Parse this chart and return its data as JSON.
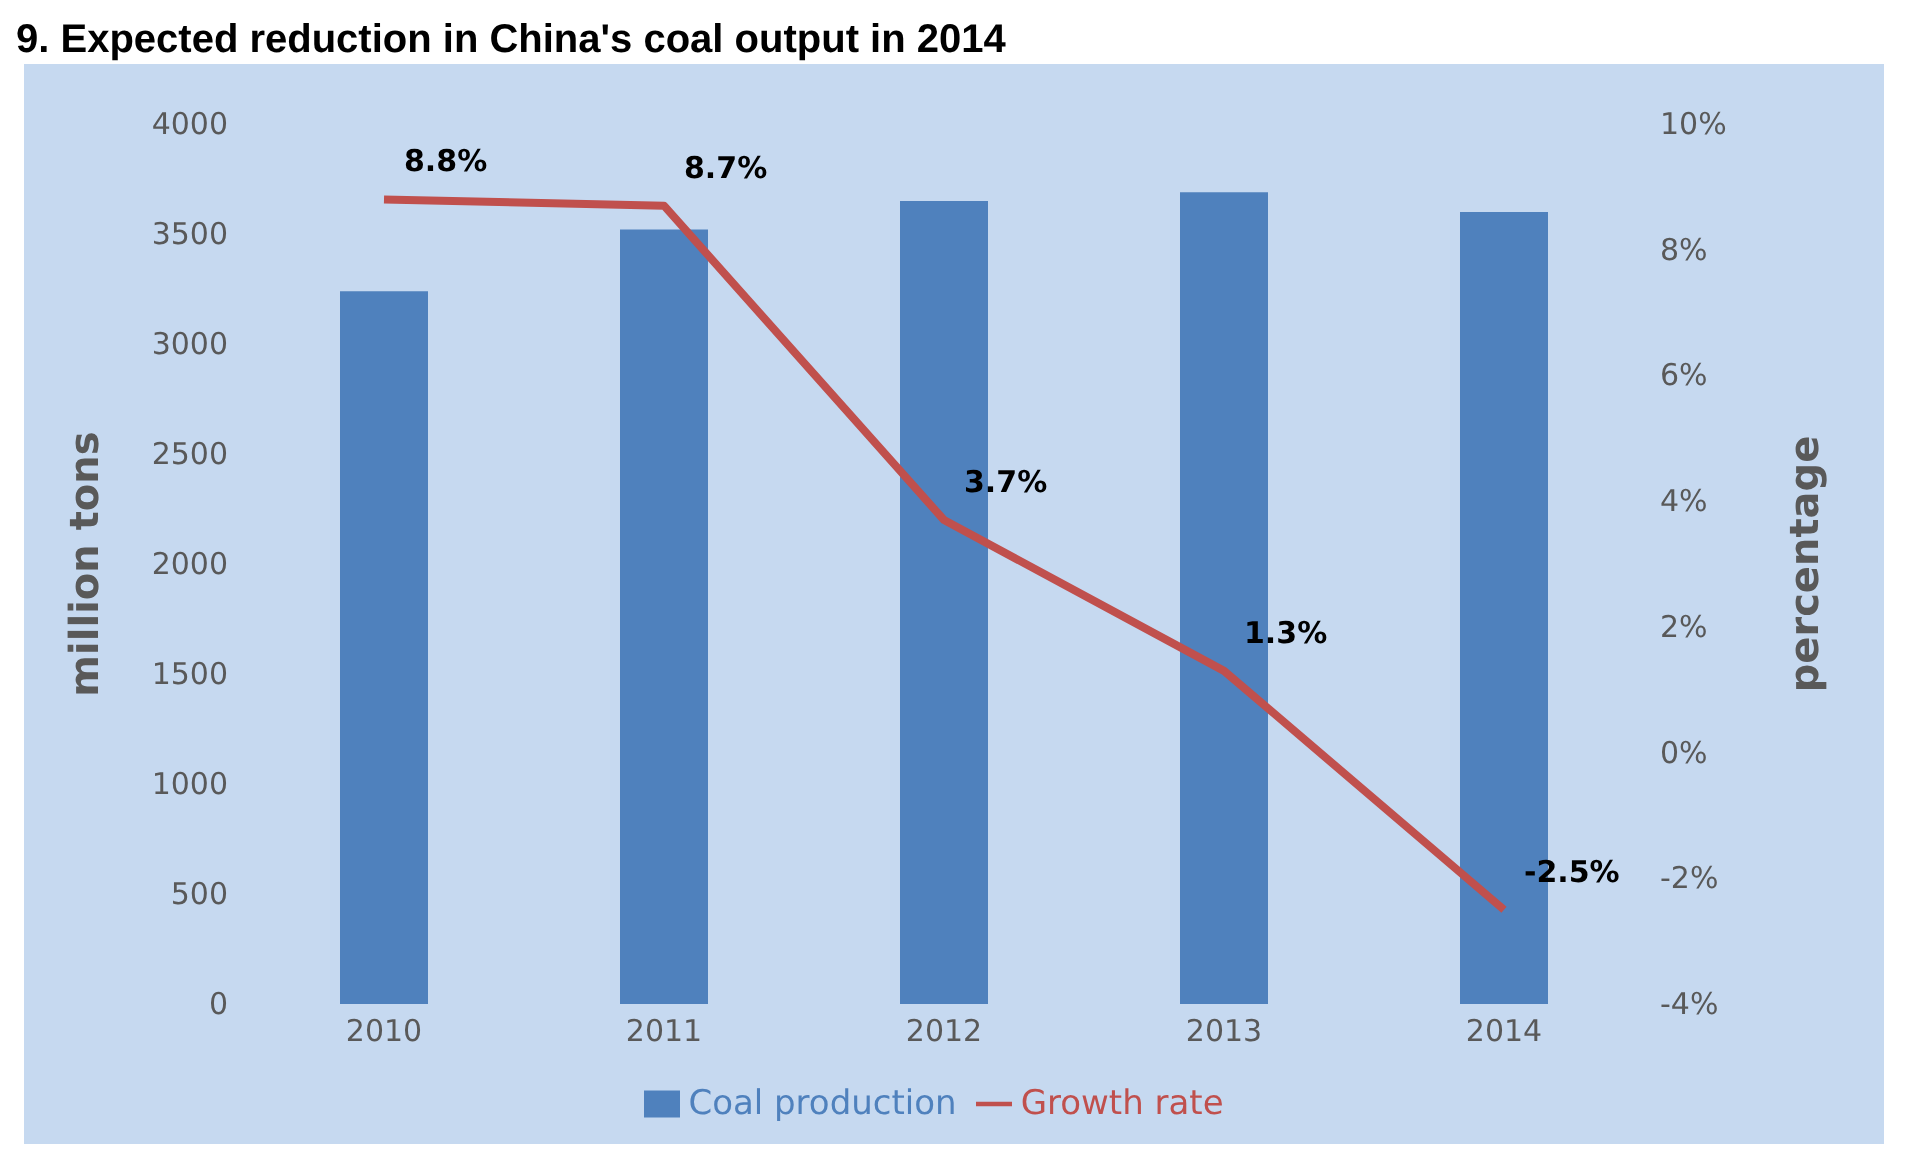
{
  "chart_data": {
    "type": "bar",
    "title": "9. Expected reduction in China's coal output in 2014",
    "ylabel": "million tons",
    "y2label": "percentage",
    "categories": [
      "2010",
      "2011",
      "2012",
      "2013",
      "2014"
    ],
    "series": [
      {
        "name": "Coal production",
        "color": "#4f81bd",
        "values": [
          3240,
          3520,
          3650,
          3690,
          3600
        ]
      },
      {
        "name": "Growth rate",
        "type": "line",
        "axis": "y2",
        "color": "#c0504d",
        "values": [
          8.8,
          8.7,
          3.7,
          1.3,
          -2.5
        ],
        "value_labels": [
          "8.8%",
          "8.7%",
          "3.7%",
          "1.3%",
          "-2.5%"
        ]
      }
    ],
    "ylim": [
      0,
      4000
    ],
    "yticks": [
      0,
      500,
      1000,
      1500,
      2000,
      2500,
      3000,
      3500,
      4000
    ],
    "y2lim": [
      -4,
      10
    ],
    "y2ticks": [
      {
        "value": -4,
        "label": "-4%"
      },
      {
        "value": -2,
        "label": "-2%"
      },
      {
        "value": 0,
        "label": "0%"
      },
      {
        "value": 2,
        "label": "2%"
      },
      {
        "value": 4,
        "label": "4%"
      },
      {
        "value": 6,
        "label": "6%"
      },
      {
        "value": 8,
        "label": "8%"
      },
      {
        "value": 10,
        "label": "10%"
      }
    ],
    "grid": false,
    "legend": "bottom",
    "marker": "none"
  }
}
